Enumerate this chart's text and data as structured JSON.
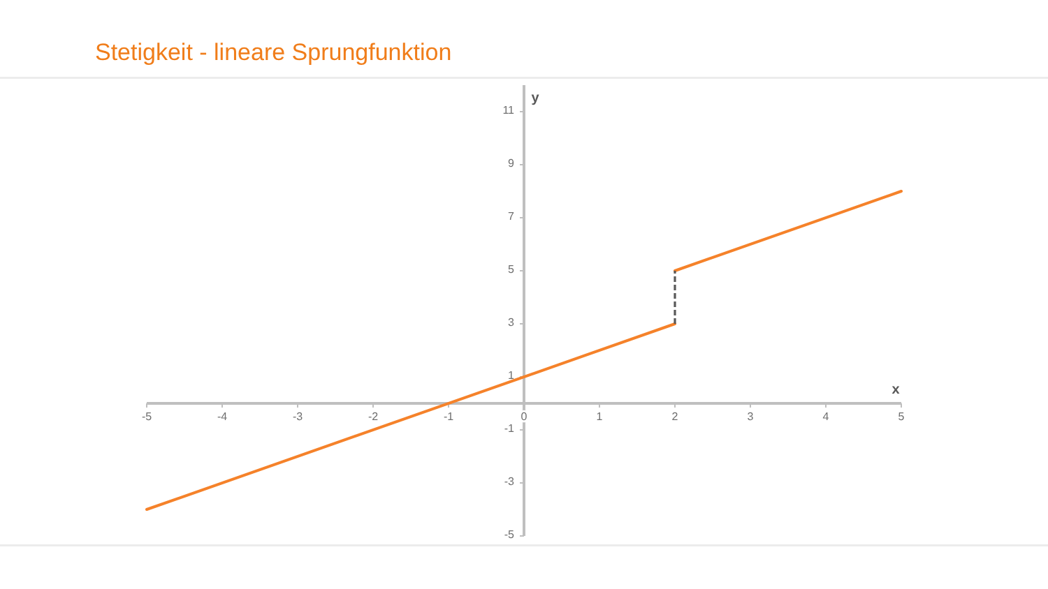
{
  "chart_data": {
    "type": "line",
    "title": "Stetigkeit - lineare Sprungfunktion",
    "xlabel": "x",
    "ylabel": "y",
    "xlim": [
      -5,
      5
    ],
    "xticks": [
      -5,
      -4,
      -3,
      -2,
      -1,
      0,
      1,
      2,
      3,
      4,
      5
    ],
    "ylim": [
      -5,
      12
    ],
    "yticks": [
      -5,
      -3,
      -1,
      1,
      3,
      5,
      7,
      9,
      11
    ],
    "series": [
      {
        "color": "#f5822a",
        "x": [
          -5,
          2
        ],
        "values": [
          -4,
          3
        ]
      },
      {
        "color": "#f5822a",
        "x": [
          2,
          5
        ],
        "values": [
          5,
          8
        ]
      },
      {
        "color": "#595959",
        "x": [
          2,
          2
        ],
        "values": [
          3,
          5
        ],
        "line_style": "dashed"
      }
    ],
    "grid": false
  }
}
